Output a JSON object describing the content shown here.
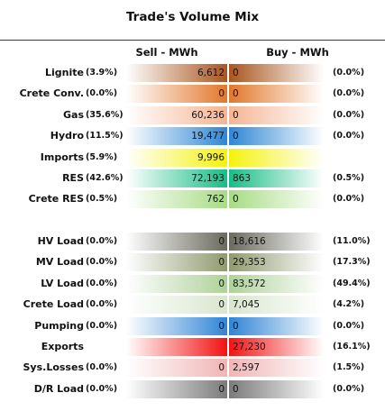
{
  "title": "Trade's Volume Mix",
  "columns": {
    "sell": "Sell - MWh",
    "buy": "Buy - MWh"
  },
  "chart_data": {
    "type": "table",
    "title": "Trade's Volume Mix",
    "columns": [
      "Sell - MWh",
      "Buy - MWh"
    ],
    "rows": [
      {
        "label": "Lignite",
        "sell_pct": "(3.9%)",
        "sell": "6,612",
        "buy": "0",
        "buy_pct": "(0.0%)",
        "color": "#a9551f",
        "group": 1
      },
      {
        "label": "Crete Conv.",
        "sell_pct": "(0.0%)",
        "sell": "0",
        "buy": "0",
        "buy_pct": "(0.0%)",
        "color": "#e2772b",
        "group": 1
      },
      {
        "label": "Gas",
        "sell_pct": "(35.6%)",
        "sell": "60,236",
        "buy": "0",
        "buy_pct": "(0.0%)",
        "color": "#f5b594",
        "group": 1
      },
      {
        "label": "Hydro",
        "sell_pct": "(11.5%)",
        "sell": "19,477",
        "buy": "0",
        "buy_pct": "(0.0%)",
        "color": "#2e86d4",
        "group": 1
      },
      {
        "label": "Imports",
        "sell_pct": "(5.9%)",
        "sell": "9,996",
        "buy": "",
        "buy_pct": "",
        "color": "#f4f20c",
        "group": 1
      },
      {
        "label": "RES",
        "sell_pct": "(42.6%)",
        "sell": "72,193",
        "buy": "863",
        "buy_pct": "(0.5%)",
        "color": "#17bd86",
        "group": 1
      },
      {
        "label": "Crete RES",
        "sell_pct": "(0.5%)",
        "sell": "762",
        "buy": "0",
        "buy_pct": "(0.0%)",
        "color": "#a6dc84",
        "group": 1
      },
      {
        "label": "HV Load",
        "sell_pct": "(0.0%)",
        "sell": "0",
        "buy": "18,616",
        "buy_pct": "(11.0%)",
        "color": "#6a6a5e",
        "group": 2
      },
      {
        "label": "MV Load",
        "sell_pct": "(0.0%)",
        "sell": "0",
        "buy": "29,353",
        "buy_pct": "(17.3%)",
        "color": "#8f9a6e",
        "group": 2
      },
      {
        "label": "LV Load",
        "sell_pct": "(0.0%)",
        "sell": "0",
        "buy": "83,572",
        "buy_pct": "(49.4%)",
        "color": "#aed19a",
        "group": 2
      },
      {
        "label": "Crete Load",
        "sell_pct": "(0.0%)",
        "sell": "0",
        "buy": "7,045",
        "buy_pct": "(4.2%)",
        "color": "#d8e6cf",
        "group": 2
      },
      {
        "label": "Pumping",
        "sell_pct": "(0.0%)",
        "sell": "0",
        "buy": "0",
        "buy_pct": "(0.0%)",
        "color": "#2f84d6",
        "group": 2
      },
      {
        "label": "Exports",
        "sell_pct": "",
        "sell": "",
        "buy": "27,230",
        "buy_pct": "(16.1%)",
        "color": "#f31212",
        "group": 2
      },
      {
        "label": "Sys.Losses",
        "sell_pct": "(0.0%)",
        "sell": "0",
        "buy": "2,597",
        "buy_pct": "(1.5%)",
        "color": "#f0b5b5",
        "group": 2
      },
      {
        "label": "D/R Load",
        "sell_pct": "(0.0%)",
        "sell": "0",
        "buy": "0",
        "buy_pct": "(0.0%)",
        "color": "#7a7a7a",
        "group": 2
      }
    ]
  }
}
